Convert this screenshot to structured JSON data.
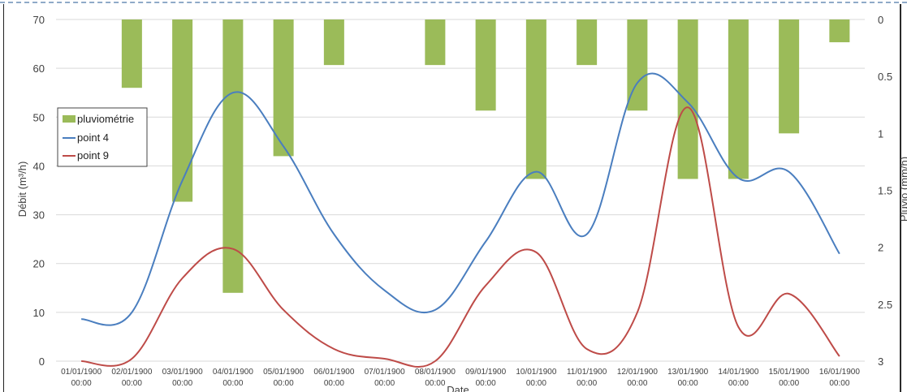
{
  "chart_data": {
    "type": "bar+line",
    "xlabel": "Date",
    "ylabel": "Débit (m³/h)",
    "y2label": "Pluvio (mm/h)",
    "ylim": [
      0,
      70
    ],
    "y2lim": [
      0,
      3
    ],
    "y2_inverted": true,
    "yticks": [
      "0",
      "10",
      "20",
      "30",
      "40",
      "50",
      "60",
      "70"
    ],
    "y2ticks": [
      "0",
      "0.5",
      "1",
      "1.5",
      "2",
      "2.5",
      "3"
    ],
    "categories": [
      "01/01/1900 00:00",
      "02/01/1900 00:00",
      "03/01/1900 00:00",
      "04/01/1900 00:00",
      "05/01/1900 00:00",
      "06/01/1900 00:00",
      "07/01/1900 00:00",
      "08/01/1900 00:00",
      "09/01/1900 00:00",
      "10/01/1900 00:00",
      "11/01/1900 00:00",
      "12/01/1900 00:00",
      "13/01/1900 00:00",
      "14/01/1900 00:00",
      "15/01/1900 00:00",
      "16/01/1900 00:00"
    ],
    "series": [
      {
        "name": "pluviométrie",
        "type": "bar",
        "axis": "secondary",
        "color": "#9bbb59",
        "values": [
          0,
          0.6,
          1.6,
          2.4,
          1.2,
          0.4,
          0,
          0.4,
          0.8,
          1.4,
          0.4,
          0.8,
          1.4,
          1.4,
          1.0,
          0.2
        ]
      },
      {
        "name": "point 4",
        "type": "line",
        "axis": "primary",
        "color": "#4a7ebf",
        "values": [
          8.6,
          10,
          37,
          55,
          44,
          26,
          14.5,
          10.5,
          24.5,
          38.8,
          26,
          57,
          53,
          37.5,
          38.8,
          22
        ]
      },
      {
        "name": "point 9",
        "type": "line",
        "axis": "primary",
        "color": "#be4b48",
        "values": [
          0,
          0.5,
          17,
          23,
          10.5,
          2.5,
          0.5,
          0,
          15.5,
          22.3,
          2.5,
          10,
          52,
          7,
          13.8,
          1
        ]
      }
    ],
    "legend": "left-middle",
    "grid": true
  }
}
